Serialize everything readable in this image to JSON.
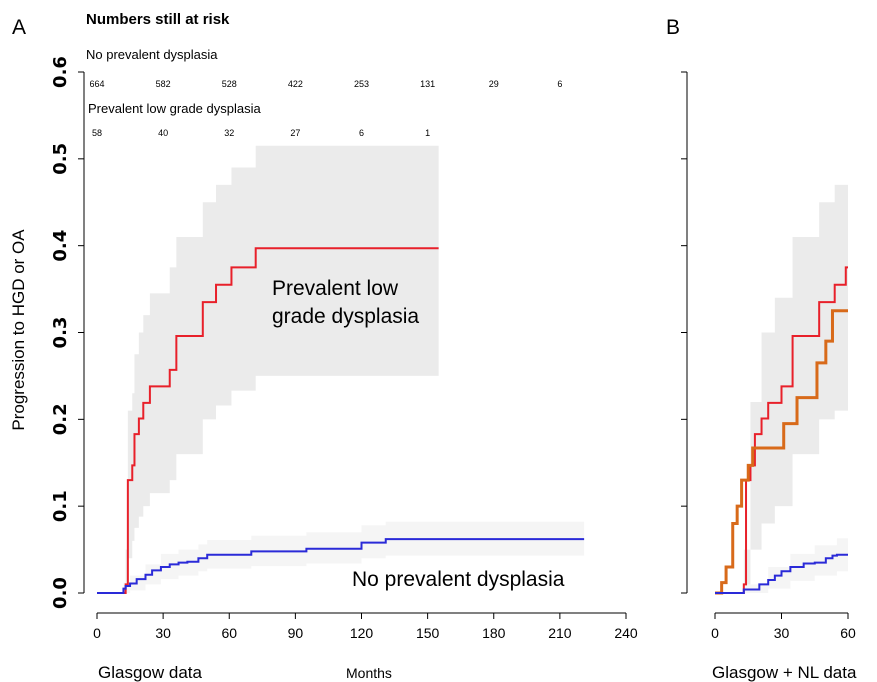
{
  "figure": {
    "panel_a_letter": "A",
    "panel_b_letter": "B",
    "risk_title": "Numbers still at risk",
    "risk_no_label": "No prevalent dysplasia",
    "risk_lgd_label": "Prevalent low grade dysplasia",
    "y_axis_label": "Progression to HGD or OA",
    "x_axis_label": "Months",
    "footer_a": "Glasgow data",
    "footer_b": "Glasgow + NL data",
    "label_lgd_line1": "Prevalent low",
    "label_lgd_line2": "grade dysplasia",
    "label_no": "No prevalent dysplasia"
  },
  "chart_data": [
    {
      "panel": "A",
      "type": "line",
      "step": true,
      "title": "",
      "xlabel": "Months",
      "ylabel": "Progression to HGD or OA",
      "xlim": [
        0,
        240
      ],
      "ylim": [
        0,
        0.6
      ],
      "x_ticks": [
        0,
        30,
        60,
        90,
        120,
        150,
        180,
        210,
        240
      ],
      "y_ticks": [
        "0.0",
        "0.1",
        "0.2",
        "0.3",
        "0.4",
        "0.5",
        "0.6"
      ],
      "grid": false,
      "colors": {
        "lgd": "#e8202a",
        "no": "#2a2ad8",
        "ci": "#ebebeb",
        "ci_light": "#f5f5f5"
      },
      "at_risk": {
        "times": [
          0,
          30,
          60,
          90,
          120,
          150,
          180,
          210
        ],
        "no_prevalent": [
          "664",
          "582",
          "528",
          "422",
          "253",
          "131",
          "29",
          "6"
        ],
        "prevalent_lgd": [
          "58",
          "40",
          "32",
          "27",
          "6",
          "1"
        ]
      },
      "series": [
        {
          "name": "Prevalent low grade dysplasia",
          "color": "#e8202a",
          "x": [
            0,
            13,
            14,
            16,
            17,
            19,
            21,
            24,
            30,
            33,
            36,
            48,
            54,
            61,
            72,
            155
          ],
          "y": [
            0,
            0.01,
            0.13,
            0.147,
            0.183,
            0.201,
            0.219,
            0.238,
            0.238,
            0.257,
            0.296,
            0.335,
            0.355,
            0.375,
            0.397,
            0.397
          ]
        },
        {
          "name": "No prevalent dysplasia",
          "color": "#2a2ad8",
          "x": [
            0,
            12,
            13,
            15,
            18,
            22,
            25,
            29,
            33,
            37,
            41,
            46,
            50,
            70,
            95,
            120,
            131,
            221
          ],
          "y": [
            0,
            0.005,
            0.008,
            0.011,
            0.016,
            0.021,
            0.026,
            0.03,
            0.033,
            0.035,
            0.036,
            0.04,
            0.044,
            0.048,
            0.051,
            0.058,
            0.062,
            0.062
          ]
        }
      ],
      "ci_bands": [
        {
          "series": "Prevalent low grade dysplasia",
          "x": [
            13,
            14,
            16,
            17,
            19,
            21,
            24,
            30,
            33,
            36,
            48,
            54,
            61,
            72,
            155
          ],
          "lower": [
            0.0,
            0.04,
            0.06,
            0.075,
            0.088,
            0.1,
            0.115,
            0.115,
            0.13,
            0.16,
            0.2,
            0.216,
            0.233,
            0.25,
            0.25
          ],
          "upper": [
            0.05,
            0.21,
            0.23,
            0.275,
            0.3,
            0.32,
            0.345,
            0.345,
            0.375,
            0.41,
            0.45,
            0.47,
            0.49,
            0.515,
            0.515
          ]
        },
        {
          "series": "No prevalent dysplasia",
          "x": [
            12,
            15,
            22,
            29,
            37,
            46,
            50,
            70,
            95,
            120,
            131,
            221
          ],
          "lower": [
            0.0,
            0.003,
            0.01,
            0.016,
            0.02,
            0.025,
            0.028,
            0.031,
            0.034,
            0.04,
            0.043,
            0.043
          ],
          "upper": [
            0.012,
            0.02,
            0.033,
            0.045,
            0.05,
            0.056,
            0.061,
            0.066,
            0.07,
            0.078,
            0.082,
            0.082
          ]
        }
      ]
    },
    {
      "panel": "B",
      "type": "line",
      "step": true,
      "title": "",
      "xlabel": "",
      "ylabel": "",
      "xlim": [
        0,
        60
      ],
      "ylim": [
        0,
        0.6
      ],
      "x_ticks": [
        0,
        30,
        60
      ],
      "grid": false,
      "colors": {
        "lgd": "#e8202a",
        "no": "#2a2ad8",
        "nl": "#d86a1a",
        "ci": "#ebebeb",
        "ci_light": "#f5f5f5"
      },
      "series": [
        {
          "name": "Prevalent low grade dysplasia",
          "color": "#e8202a",
          "x": [
            0,
            13,
            14,
            16,
            18,
            21,
            24,
            30,
            35,
            47,
            54,
            59,
            60
          ],
          "y": [
            0,
            0.01,
            0.13,
            0.147,
            0.183,
            0.201,
            0.219,
            0.238,
            0.296,
            0.335,
            0.355,
            0.375,
            0.375
          ]
        },
        {
          "name": "",
          "color": "#d86a1a",
          "x": [
            0,
            3,
            5,
            8,
            10,
            12,
            15,
            17,
            26,
            31,
            37,
            46,
            50,
            53,
            60
          ],
          "y": [
            0,
            0.012,
            0.03,
            0.08,
            0.1,
            0.13,
            0.147,
            0.167,
            0.167,
            0.195,
            0.225,
            0.265,
            0.29,
            0.325,
            0.325
          ]
        },
        {
          "name": "No prevalent dysplasia",
          "color": "#2a2ad8",
          "x": [
            0,
            13,
            20,
            24,
            27,
            30,
            34,
            40,
            45,
            50,
            53,
            55,
            60
          ],
          "y": [
            0,
            0.004,
            0.01,
            0.015,
            0.02,
            0.025,
            0.03,
            0.034,
            0.035,
            0.04,
            0.043,
            0.044,
            0.044
          ]
        }
      ],
      "ci_bands": [
        {
          "series": "Prevalent low grade dysplasia",
          "x": [
            13,
            16,
            21,
            27,
            35,
            47,
            54,
            60
          ],
          "lower": [
            0.0,
            0.05,
            0.08,
            0.1,
            0.16,
            0.2,
            0.21,
            0.21
          ],
          "upper": [
            0.05,
            0.22,
            0.3,
            0.34,
            0.41,
            0.45,
            0.47,
            0.47
          ]
        },
        {
          "series": "No prevalent dysplasia",
          "x": [
            13,
            24,
            34,
            45,
            55,
            60
          ],
          "lower": [
            0.0,
            0.005,
            0.014,
            0.02,
            0.025,
            0.025
          ],
          "upper": [
            0.01,
            0.03,
            0.045,
            0.055,
            0.063,
            0.063
          ]
        }
      ]
    }
  ]
}
